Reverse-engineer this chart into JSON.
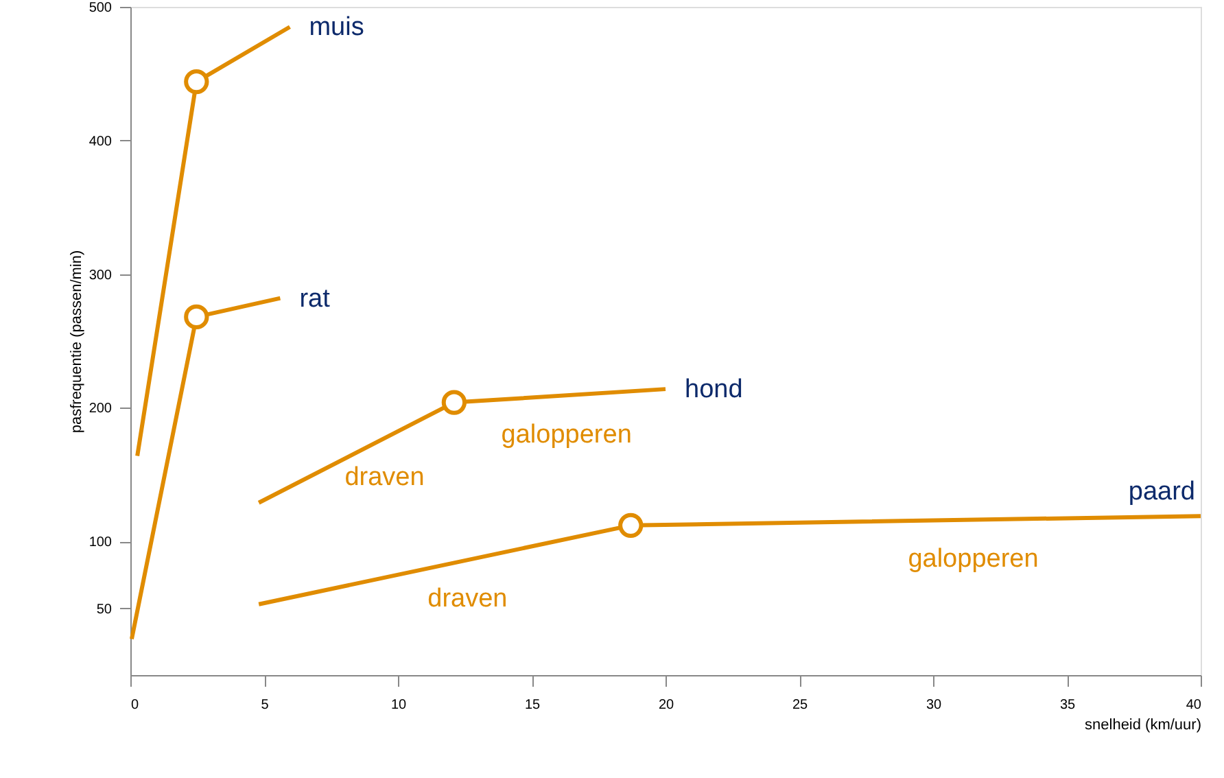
{
  "chart_data": {
    "type": "line",
    "xlabel": "snelheid (km/uur)",
    "ylabel": "pasfrequentie (passen/min)",
    "xlim": [
      0,
      40
    ],
    "xticks": [
      0,
      5,
      10,
      15,
      20,
      25,
      30,
      35,
      40
    ],
    "ylim": [
      0,
      500
    ],
    "yticks": [
      50,
      100,
      200,
      300,
      400,
      500
    ],
    "grid": false,
    "marker": "none",
    "line_style": "solid",
    "series": [
      {
        "name": "muis",
        "color": "#e08c00",
        "x": [
          0.26,
          2.47,
          5.96
        ],
        "values": [
          164,
          444,
          485
        ]
      },
      {
        "name": "rat",
        "color": "#e08c00",
        "x": [
          0.05,
          2.47,
          5.6
        ],
        "values": [
          27,
          268,
          282
        ]
      },
      {
        "name": "hond",
        "color": "#e08c00",
        "x": [
          4.8,
          12.1,
          20
        ],
        "values": [
          129,
          204,
          214
        ]
      },
      {
        "name": "paard",
        "color": "#e08c00",
        "x": [
          4.8,
          18.7,
          40
        ],
        "values": [
          53,
          112,
          119
        ]
      },
      {
        "type": "scatter",
        "marker": "circle",
        "color": "#e08c00",
        "x": [
          2.47,
          2.47,
          12.1,
          18.7
        ],
        "values": [
          444,
          268,
          204,
          112
        ]
      }
    ],
    "annotations": [
      {
        "text": "draven",
        "x": 9.5,
        "y": 177
      },
      {
        "text": "galopperen",
        "x": 16.3,
        "y": 209
      },
      {
        "text": "draven",
        "x": 12.6,
        "y": 86
      },
      {
        "text": "galopperen",
        "x": 31.5,
        "y": 116
      }
    ]
  }
}
